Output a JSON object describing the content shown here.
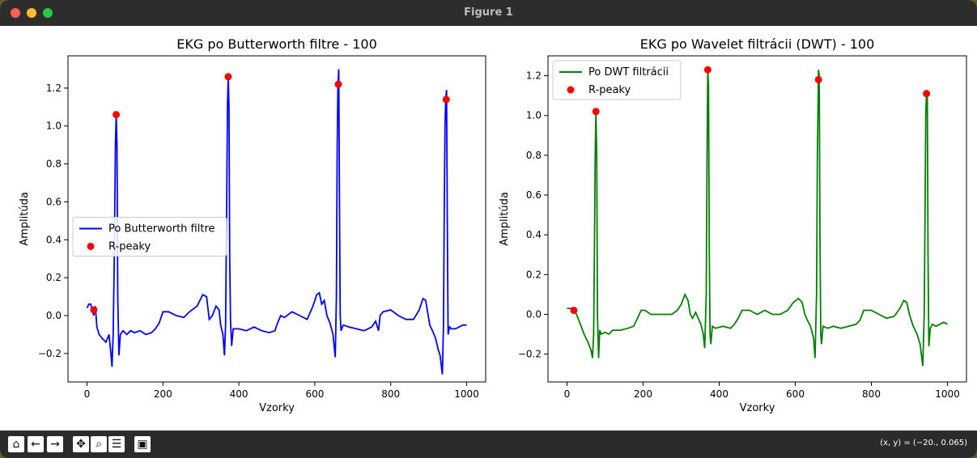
{
  "window": {
    "title": "Figure 1"
  },
  "toolbar": {
    "buttons": [
      {
        "name": "home-button",
        "icon": "home-icon",
        "glyph": "⌂"
      },
      {
        "name": "back-button",
        "icon": "arrow-left-icon",
        "glyph": "←"
      },
      {
        "name": "forward-button",
        "icon": "arrow-right-icon",
        "glyph": "→"
      },
      {
        "name": "pan-button",
        "icon": "pan-icon",
        "glyph": "✥"
      },
      {
        "name": "zoom-button",
        "icon": "zoom-icon",
        "glyph": "⌕"
      },
      {
        "name": "configure-subplots-button",
        "icon": "sliders-icon",
        "glyph": "☰"
      },
      {
        "name": "save-button",
        "icon": "save-icon",
        "glyph": "▣"
      }
    ],
    "coords": "(x, y) = (−20., 0.065)"
  },
  "chart_data": [
    {
      "type": "line",
      "title": "EKG po Butterworth filtre - 100",
      "xlabel": "Vzorky",
      "ylabel": "Amplitúda",
      "xlim": [
        -50,
        1050
      ],
      "ylim": [
        -0.35,
        1.37
      ],
      "xticks": [
        "0",
        "200",
        "400",
        "600",
        "800",
        "1000"
      ],
      "yticks": [
        "−0.2",
        "0.0",
        "0.2",
        "0.4",
        "0.6",
        "0.8",
        "1.0",
        "1.2"
      ],
      "legend_position": "center-left",
      "color": "#0000ff",
      "series": [
        {
          "name": "Po Butterworth filtre",
          "points": [
            [
              0,
              0.04
            ],
            [
              5,
              0.06
            ],
            [
              10,
              0.06
            ],
            [
              14,
              0.03
            ],
            [
              18,
              0.0
            ],
            [
              22,
              0.05
            ],
            [
              26,
              -0.06
            ],
            [
              32,
              -0.1
            ],
            [
              40,
              -0.12
            ],
            [
              50,
              -0.14
            ],
            [
              58,
              -0.1
            ],
            [
              63,
              -0.2
            ],
            [
              66,
              -0.27
            ],
            [
              69,
              -0.1
            ],
            [
              72,
              0.3
            ],
            [
              75,
              0.9
            ],
            [
              77,
              1.06
            ],
            [
              79,
              0.9
            ],
            [
              81,
              0.1
            ],
            [
              84,
              -0.21
            ],
            [
              88,
              -0.1
            ],
            [
              95,
              -0.08
            ],
            [
              105,
              -0.1
            ],
            [
              115,
              -0.08
            ],
            [
              125,
              -0.09
            ],
            [
              140,
              -0.08
            ],
            [
              155,
              -0.1
            ],
            [
              170,
              -0.09
            ],
            [
              180,
              -0.07
            ],
            [
              190,
              -0.04
            ],
            [
              200,
              0.02
            ],
            [
              215,
              0.02
            ],
            [
              235,
              0.0
            ],
            [
              255,
              -0.01
            ],
            [
              270,
              0.02
            ],
            [
              290,
              0.05
            ],
            [
              305,
              0.11
            ],
            [
              315,
              0.1
            ],
            [
              322,
              -0.02
            ],
            [
              330,
              0.0
            ],
            [
              340,
              0.05
            ],
            [
              348,
              0.03
            ],
            [
              352,
              -0.05
            ],
            [
              358,
              -0.1
            ],
            [
              362,
              -0.21
            ],
            [
              365,
              -0.05
            ],
            [
              368,
              0.6
            ],
            [
              370,
              1.1
            ],
            [
              372,
              1.26
            ],
            [
              374,
              1.1
            ],
            [
              376,
              0.3
            ],
            [
              378,
              -0.03
            ],
            [
              381,
              -0.16
            ],
            [
              385,
              -0.07
            ],
            [
              400,
              -0.07
            ],
            [
              420,
              -0.08
            ],
            [
              440,
              -0.06
            ],
            [
              460,
              -0.08
            ],
            [
              480,
              -0.09
            ],
            [
              495,
              -0.08
            ],
            [
              500,
              -0.05
            ],
            [
              510,
              0.0
            ],
            [
              520,
              -0.01
            ],
            [
              540,
              0.02
            ],
            [
              560,
              0.0
            ],
            [
              580,
              -0.02
            ],
            [
              595,
              0.05
            ],
            [
              605,
              0.11
            ],
            [
              612,
              0.12
            ],
            [
              618,
              0.06
            ],
            [
              625,
              0.08
            ],
            [
              632,
              0.0
            ],
            [
              640,
              -0.04
            ],
            [
              648,
              -0.1
            ],
            [
              654,
              -0.22
            ],
            [
              657,
              0.1
            ],
            [
              659,
              0.9
            ],
            [
              661,
              1.22
            ],
            [
              663,
              1.3
            ],
            [
              665,
              0.6
            ],
            [
              667,
              0.0
            ],
            [
              669,
              -0.08
            ],
            [
              675,
              -0.05
            ],
            [
              690,
              -0.06
            ],
            [
              710,
              -0.07
            ],
            [
              730,
              -0.08
            ],
            [
              750,
              -0.06
            ],
            [
              760,
              -0.03
            ],
            [
              768,
              -0.08
            ],
            [
              772,
              0.0
            ],
            [
              780,
              0.02
            ],
            [
              800,
              0.03
            ],
            [
              820,
              0.0
            ],
            [
              840,
              -0.02
            ],
            [
              860,
              -0.02
            ],
            [
              875,
              0.03
            ],
            [
              885,
              0.09
            ],
            [
              892,
              0.08
            ],
            [
              897,
              0.02
            ],
            [
              903,
              -0.05
            ],
            [
              910,
              -0.08
            ],
            [
              918,
              -0.12
            ],
            [
              925,
              -0.18
            ],
            [
              930,
              -0.21
            ],
            [
              936,
              -0.31
            ],
            [
              939,
              -0.05
            ],
            [
              941,
              0.6
            ],
            [
              943,
              1.0
            ],
            [
              945,
              1.15
            ],
            [
              947,
              1.19
            ],
            [
              949,
              0.5
            ],
            [
              951,
              -0.1
            ],
            [
              955,
              -0.06
            ],
            [
              960,
              -0.07
            ],
            [
              970,
              -0.07
            ],
            [
              980,
              -0.06
            ],
            [
              990,
              -0.05
            ],
            [
              1000,
              -0.05
            ]
          ]
        },
        {
          "name": "R-peaky",
          "type": "scatter",
          "color": "#ff0000",
          "points": [
            [
              18,
              0.03
            ],
            [
              77,
              1.06
            ],
            [
              372,
              1.26
            ],
            [
              662,
              1.22
            ],
            [
              946,
              1.14
            ]
          ]
        }
      ]
    },
    {
      "type": "line",
      "title": "EKG po Wavelet filtrácii (DWT) - 100",
      "xlabel": "Vzorky",
      "ylabel": "Amplitúda",
      "xlim": [
        -50,
        1050
      ],
      "ylim": [
        -0.34,
        1.3
      ],
      "xticks": [
        "0",
        "200",
        "400",
        "600",
        "800",
        "1000"
      ],
      "yticks": [
        "−0.2",
        "0.0",
        "0.2",
        "0.4",
        "0.6",
        "0.8",
        "1.0",
        "1.2"
      ],
      "legend_position": "upper-left",
      "color": "#008000",
      "series": [
        {
          "name": "Po DWT filtrácii",
          "points": [
            [
              0,
              0.03
            ],
            [
              10,
              0.03
            ],
            [
              18,
              0.02
            ],
            [
              25,
              0.0
            ],
            [
              35,
              -0.05
            ],
            [
              45,
              -0.1
            ],
            [
              55,
              -0.14
            ],
            [
              63,
              -0.18
            ],
            [
              67,
              -0.22
            ],
            [
              70,
              -0.1
            ],
            [
              72,
              0.3
            ],
            [
              74,
              0.8
            ],
            [
              76,
              1.02
            ],
            [
              78,
              0.8
            ],
            [
              80,
              0.0
            ],
            [
              83,
              -0.22
            ],
            [
              86,
              -0.08
            ],
            [
              90,
              -0.1
            ],
            [
              100,
              -0.09
            ],
            [
              110,
              -0.1
            ],
            [
              120,
              -0.08
            ],
            [
              140,
              -0.08
            ],
            [
              160,
              -0.07
            ],
            [
              175,
              -0.06
            ],
            [
              185,
              -0.02
            ],
            [
              195,
              0.02
            ],
            [
              205,
              0.02
            ],
            [
              220,
              0.0
            ],
            [
              250,
              0.0
            ],
            [
              275,
              0.0
            ],
            [
              290,
              0.02
            ],
            [
              300,
              0.05
            ],
            [
              310,
              0.1
            ],
            [
              318,
              0.07
            ],
            [
              324,
              0.0
            ],
            [
              330,
              -0.02
            ],
            [
              338,
              0.01
            ],
            [
              345,
              -0.02
            ],
            [
              352,
              -0.05
            ],
            [
              358,
              -0.1
            ],
            [
              362,
              -0.17
            ],
            [
              366,
              0.1
            ],
            [
              368,
              0.8
            ],
            [
              370,
              1.23
            ],
            [
              372,
              1.15
            ],
            [
              374,
              0.3
            ],
            [
              376,
              -0.1
            ],
            [
              378,
              -0.15
            ],
            [
              382,
              -0.06
            ],
            [
              390,
              -0.07
            ],
            [
              410,
              -0.06
            ],
            [
              430,
              -0.07
            ],
            [
              440,
              -0.05
            ],
            [
              450,
              -0.02
            ],
            [
              460,
              0.02
            ],
            [
              480,
              0.02
            ],
            [
              500,
              0.0
            ],
            [
              520,
              0.02
            ],
            [
              540,
              0.0
            ],
            [
              560,
              0.0
            ],
            [
              580,
              0.02
            ],
            [
              595,
              0.06
            ],
            [
              608,
              0.08
            ],
            [
              618,
              0.06
            ],
            [
              625,
              0.0
            ],
            [
              632,
              -0.03
            ],
            [
              640,
              -0.06
            ],
            [
              648,
              -0.12
            ],
            [
              652,
              -0.22
            ],
            [
              656,
              0.1
            ],
            [
              658,
              0.8
            ],
            [
              661,
              1.23
            ],
            [
              663,
              1.2
            ],
            [
              665,
              0.4
            ],
            [
              667,
              -0.1
            ],
            [
              669,
              -0.15
            ],
            [
              673,
              -0.06
            ],
            [
              685,
              -0.07
            ],
            [
              700,
              -0.06
            ],
            [
              720,
              -0.07
            ],
            [
              740,
              -0.06
            ],
            [
              760,
              -0.05
            ],
            [
              770,
              -0.03
            ],
            [
              780,
              0.02
            ],
            [
              800,
              0.02
            ],
            [
              820,
              0.0
            ],
            [
              840,
              -0.02
            ],
            [
              860,
              -0.01
            ],
            [
              875,
              0.03
            ],
            [
              885,
              0.07
            ],
            [
              893,
              0.06
            ],
            [
              900,
              0.0
            ],
            [
              910,
              -0.06
            ],
            [
              920,
              -0.1
            ],
            [
              928,
              -0.15
            ],
            [
              935,
              -0.26
            ],
            [
              939,
              0.0
            ],
            [
              941,
              0.5
            ],
            [
              943,
              1.0
            ],
            [
              945,
              1.13
            ],
            [
              947,
              1.1
            ],
            [
              949,
              0.3
            ],
            [
              951,
              -0.16
            ],
            [
              955,
              -0.07
            ],
            [
              960,
              -0.05
            ],
            [
              970,
              -0.06
            ],
            [
              980,
              -0.05
            ],
            [
              990,
              -0.04
            ],
            [
              1000,
              -0.05
            ]
          ]
        },
        {
          "name": "R-peaky",
          "type": "scatter",
          "color": "#ff0000",
          "points": [
            [
              18,
              0.02
            ],
            [
              76,
              1.02
            ],
            [
              370,
              1.23
            ],
            [
              661,
              1.18
            ],
            [
              945,
              1.11
            ]
          ]
        }
      ]
    }
  ]
}
